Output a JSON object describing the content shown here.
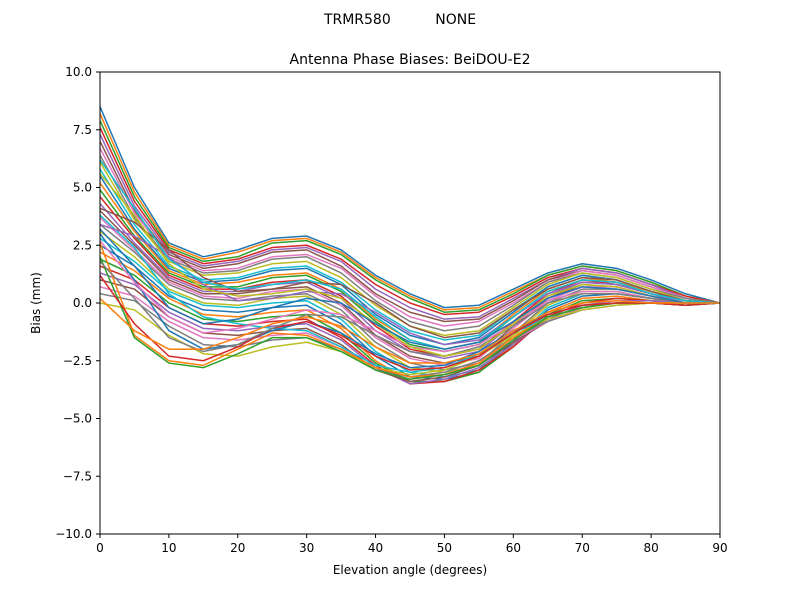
{
  "figure": {
    "suptitle": "TRMR580          NONE"
  },
  "chart_data": {
    "type": "line",
    "title": "Antenna Phase Biases: BeiDOU-E2",
    "xlabel": "Elevation angle (degrees)",
    "ylabel": "Bias (mm)",
    "xlim": [
      0,
      90
    ],
    "ylim": [
      -10,
      10
    ],
    "xticks": [
      0,
      10,
      20,
      30,
      40,
      50,
      60,
      70,
      80,
      90
    ],
    "yticks": [
      -10.0,
      -7.5,
      -5.0,
      -2.5,
      0.0,
      2.5,
      5.0,
      7.5,
      10.0
    ],
    "xtick_labels": [
      "0",
      "10",
      "20",
      "30",
      "40",
      "50",
      "60",
      "70",
      "80",
      "90"
    ],
    "ytick_labels": [
      "−10.0",
      "−7.5",
      "−5.0",
      "−2.5",
      "0.0",
      "2.5",
      "5.0",
      "7.5",
      "10.0"
    ],
    "grid": false,
    "legend": "none",
    "x": [
      0,
      5,
      10,
      15,
      20,
      25,
      30,
      35,
      40,
      45,
      50,
      55,
      60,
      65,
      70,
      75,
      80,
      85,
      90
    ],
    "colors": [
      "#1f77b4",
      "#ff7f0e",
      "#2ca02c",
      "#d62728",
      "#9467bd",
      "#8c564b",
      "#e377c2",
      "#7f7f7f",
      "#bcbd22",
      "#17becf"
    ],
    "series": [
      {
        "values": [
          8.5,
          5.0,
          2.6,
          2.0,
          2.3,
          2.8,
          2.9,
          2.3,
          1.2,
          0.4,
          -0.2,
          -0.1,
          0.6,
          1.3,
          1.7,
          1.5,
          1.0,
          0.4,
          0.0
        ]
      },
      {
        "values": [
          8.2,
          4.8,
          2.5,
          1.9,
          2.2,
          2.7,
          2.8,
          2.2,
          1.1,
          0.3,
          -0.3,
          -0.2,
          0.5,
          1.2,
          1.6,
          1.4,
          0.9,
          0.3,
          0.0
        ]
      },
      {
        "values": [
          7.9,
          4.6,
          2.4,
          1.8,
          2.0,
          2.6,
          2.7,
          2.1,
          1.0,
          0.2,
          -0.4,
          -0.3,
          0.4,
          1.2,
          1.6,
          1.4,
          0.9,
          0.3,
          0.0
        ]
      },
      {
        "values": [
          7.6,
          4.4,
          2.3,
          1.7,
          1.9,
          2.4,
          2.5,
          1.9,
          0.8,
          0.0,
          -0.5,
          -0.4,
          0.3,
          1.1,
          1.5,
          1.3,
          0.8,
          0.3,
          0.0
        ]
      },
      {
        "values": [
          7.3,
          4.2,
          2.2,
          1.6,
          1.8,
          2.3,
          2.4,
          1.8,
          0.6,
          -0.2,
          -0.7,
          -0.6,
          0.2,
          1.0,
          1.5,
          1.3,
          0.8,
          0.2,
          0.0
        ]
      },
      {
        "values": [
          7.0,
          4.0,
          2.1,
          1.5,
          1.7,
          2.2,
          2.3,
          1.6,
          0.4,
          -0.4,
          -0.8,
          -0.7,
          0.1,
          1.0,
          1.4,
          1.2,
          0.7,
          0.2,
          0.0
        ]
      },
      {
        "values": [
          6.7,
          3.9,
          2.0,
          1.4,
          1.5,
          2.0,
          2.1,
          1.5,
          0.3,
          -0.6,
          -1.0,
          -0.8,
          0.0,
          0.9,
          1.4,
          1.2,
          0.7,
          0.2,
          0.0
        ]
      },
      {
        "values": [
          6.4,
          3.7,
          1.9,
          1.3,
          1.4,
          1.9,
          2.0,
          1.3,
          0.1,
          -0.8,
          -1.2,
          -1.0,
          -0.1,
          0.9,
          1.3,
          1.1,
          0.6,
          0.2,
          0.0
        ]
      },
      {
        "values": [
          6.1,
          3.6,
          1.8,
          1.2,
          1.3,
          1.7,
          1.8,
          1.1,
          -0.1,
          -1.0,
          -1.4,
          -1.2,
          -0.2,
          0.8,
          1.3,
          1.1,
          0.6,
          0.1,
          0.0
        ]
      },
      {
        "values": [
          5.8,
          3.4,
          1.6,
          1.0,
          1.1,
          1.5,
          1.6,
          0.9,
          -0.3,
          -1.2,
          -1.6,
          -1.4,
          -0.3,
          0.7,
          1.2,
          1.0,
          0.5,
          0.1,
          0.0
        ]
      },
      {
        "values": [
          5.5,
          3.2,
          1.5,
          0.9,
          1.0,
          1.4,
          1.5,
          0.8,
          -0.5,
          -1.4,
          -1.8,
          -1.5,
          -0.4,
          0.7,
          1.2,
          1.0,
          0.5,
          0.1,
          0.0
        ]
      },
      {
        "values": [
          5.2,
          3.1,
          1.4,
          0.8,
          0.9,
          1.2,
          1.3,
          0.6,
          -0.7,
          -1.6,
          -2.0,
          -1.7,
          -0.5,
          0.6,
          1.1,
          0.9,
          0.5,
          0.1,
          0.0
        ]
      },
      {
        "values": [
          4.9,
          2.9,
          1.3,
          0.7,
          0.7,
          1.1,
          1.2,
          0.5,
          -0.8,
          -1.8,
          -2.1,
          -1.8,
          -0.6,
          0.5,
          1.0,
          0.9,
          0.4,
          0.1,
          0.0
        ]
      },
      {
        "values": [
          4.6,
          2.8,
          1.2,
          0.6,
          0.6,
          0.9,
          1.0,
          0.3,
          -1.0,
          -2.0,
          -2.3,
          -2.0,
          -0.8,
          0.4,
          1.0,
          0.8,
          0.4,
          0.0,
          0.0
        ]
      },
      {
        "values": [
          4.3,
          2.6,
          1.1,
          0.5,
          0.5,
          0.8,
          0.9,
          0.2,
          -1.2,
          -2.1,
          -2.4,
          -2.1,
          -0.9,
          0.3,
          0.9,
          0.8,
          0.4,
          0.0,
          0.0
        ]
      },
      {
        "values": [
          4.0,
          2.5,
          1.0,
          0.4,
          0.4,
          0.6,
          0.7,
          0.0,
          -1.4,
          -2.3,
          -2.6,
          -2.3,
          -1.0,
          0.2,
          0.8,
          0.7,
          0.3,
          0.0,
          0.0
        ]
      },
      {
        "values": [
          3.7,
          2.3,
          0.9,
          0.3,
          0.2,
          0.5,
          0.6,
          -0.1,
          -1.5,
          -2.4,
          -2.7,
          -2.4,
          -1.1,
          0.1,
          0.7,
          0.7,
          0.3,
          0.0,
          0.0
        ]
      },
      {
        "values": [
          3.4,
          2.2,
          0.8,
          0.2,
          0.1,
          0.3,
          0.4,
          -0.3,
          -1.7,
          -2.6,
          -2.9,
          -2.6,
          -1.3,
          0.0,
          0.6,
          0.6,
          0.3,
          0.0,
          0.0
        ]
      },
      {
        "values": [
          3.1,
          2.0,
          0.6,
          0.0,
          -0.1,
          0.2,
          0.3,
          -0.5,
          -1.9,
          -2.8,
          -3.0,
          -2.7,
          -1.4,
          -0.1,
          0.5,
          0.5,
          0.2,
          0.0,
          0.0
        ]
      },
      {
        "values": [
          2.8,
          1.8,
          0.5,
          -0.1,
          -0.2,
          0.0,
          0.1,
          -0.7,
          -2.1,
          -3.0,
          -3.2,
          -2.9,
          -1.6,
          -0.2,
          0.4,
          0.4,
          0.2,
          0.0,
          0.0
        ]
      },
      {
        "values": [
          2.5,
          1.6,
          0.3,
          -0.3,
          -0.4,
          -0.2,
          -0.1,
          -0.9,
          -2.3,
          -3.2,
          -3.3,
          -3.0,
          -1.7,
          -0.3,
          0.3,
          0.4,
          0.2,
          0.0,
          0.0
        ]
      },
      {
        "values": [
          2.2,
          1.4,
          0.2,
          -0.5,
          -0.6,
          -0.4,
          -0.3,
          -1.1,
          -2.5,
          -3.4,
          -3.4,
          -3.0,
          -1.8,
          -0.4,
          0.2,
          0.3,
          0.1,
          0.0,
          0.0
        ]
      },
      {
        "values": [
          1.9,
          1.2,
          0.0,
          -0.7,
          -0.8,
          -0.6,
          -0.5,
          -1.3,
          -2.6,
          -3.4,
          -3.4,
          -3.0,
          -1.9,
          -0.5,
          0.1,
          0.2,
          0.1,
          0.0,
          0.0
        ]
      },
      {
        "values": [
          1.6,
          1.0,
          -0.2,
          -0.9,
          -1.0,
          -0.8,
          -0.7,
          -1.5,
          -2.7,
          -3.5,
          -3.4,
          -2.9,
          -1.9,
          -0.6,
          0.0,
          0.2,
          0.1,
          0.0,
          0.0
        ]
      },
      {
        "values": [
          1.3,
          0.8,
          -0.4,
          -1.1,
          -1.2,
          -1.0,
          -0.9,
          -1.6,
          -2.8,
          -3.5,
          -3.3,
          -2.8,
          -1.8,
          -0.7,
          -0.1,
          0.1,
          0.1,
          0.0,
          0.0
        ]
      },
      {
        "values": [
          1.0,
          0.6,
          -0.6,
          -1.3,
          -1.4,
          -1.2,
          -1.1,
          -1.8,
          -2.9,
          -3.4,
          -3.2,
          -2.7,
          -1.7,
          -0.8,
          -0.2,
          0.0,
          0.0,
          0.0,
          0.0
        ]
      },
      {
        "values": [
          0.7,
          0.3,
          -0.8,
          -1.5,
          -1.6,
          -1.4,
          -1.3,
          -1.9,
          -2.9,
          -3.3,
          -3.1,
          -2.6,
          -1.6,
          -0.8,
          -0.2,
          0.0,
          0.0,
          0.0,
          0.0
        ]
      },
      {
        "values": [
          0.4,
          0.1,
          -1.0,
          -1.8,
          -1.9,
          -1.6,
          -1.5,
          -2.0,
          -2.9,
          -3.2,
          -3.0,
          -2.5,
          -1.5,
          -0.8,
          -0.3,
          -0.1,
          0.0,
          0.0,
          0.0
        ]
      },
      {
        "values": [
          0.0,
          -0.3,
          -1.4,
          -2.2,
          -2.3,
          -1.9,
          -1.7,
          -2.1,
          -2.8,
          -3.1,
          -2.9,
          -2.3,
          -1.4,
          -0.7,
          -0.3,
          -0.1,
          0.0,
          0.0,
          0.0
        ]
      },
      {
        "values": [
          3.8,
          2.4,
          0.4,
          -0.6,
          -0.9,
          -1.1,
          -1.2,
          -1.9,
          -2.7,
          -3.0,
          -2.8,
          -2.2,
          -1.3,
          -0.6,
          -0.2,
          0.0,
          0.0,
          -0.1,
          0.0
        ]
      },
      {
        "values": [
          3.0,
          1.0,
          -1.2,
          -2.0,
          -1.8,
          -1.2,
          -0.8,
          -1.3,
          -2.2,
          -2.8,
          -2.7,
          -2.1,
          -1.2,
          -0.5,
          -0.1,
          0.0,
          0.0,
          -0.1,
          0.0
        ]
      },
      {
        "values": [
          2.6,
          -1.4,
          -2.5,
          -2.7,
          -2.0,
          -1.3,
          -1.4,
          -2.0,
          -2.8,
          -3.2,
          -3.1,
          -2.6,
          -1.5,
          -0.6,
          -0.2,
          0.0,
          0.0,
          -0.1,
          0.0
        ]
      },
      {
        "values": [
          2.0,
          -1.5,
          -2.6,
          -2.8,
          -2.2,
          -1.5,
          -1.5,
          -2.1,
          -2.9,
          -3.3,
          -3.1,
          -2.7,
          -1.6,
          -0.6,
          -0.2,
          0.0,
          0.0,
          -0.1,
          0.0
        ]
      },
      {
        "values": [
          1.2,
          -0.9,
          -2.3,
          -2.5,
          -1.9,
          -1.1,
          -0.8,
          -1.4,
          -2.3,
          -2.9,
          -2.8,
          -2.3,
          -1.3,
          -0.5,
          -0.1,
          0.0,
          0.0,
          -0.1,
          0.0
        ]
      },
      {
        "values": [
          3.4,
          2.9,
          2.0,
          0.8,
          0.1,
          0.2,
          0.5,
          0.4,
          -0.4,
          -1.3,
          -1.8,
          -1.6,
          -0.6,
          0.4,
          0.9,
          0.8,
          0.4,
          0.0,
          0.0
        ]
      },
      {
        "values": [
          4.1,
          3.5,
          2.3,
          1.1,
          0.5,
          0.6,
          0.9,
          0.8,
          0.0,
          -1.0,
          -1.5,
          -1.3,
          -0.3,
          0.6,
          1.1,
          1.0,
          0.5,
          0.1,
          0.0
        ]
      },
      {
        "values": [
          2.7,
          0.9,
          -0.6,
          -1.3,
          -1.1,
          -0.7,
          -0.3,
          -0.5,
          -1.2,
          -1.9,
          -2.1,
          -1.8,
          -0.9,
          0.1,
          0.5,
          0.5,
          0.2,
          0.0,
          0.0
        ]
      },
      {
        "values": [
          1.8,
          0.2,
          -1.5,
          -2.1,
          -1.8,
          -1.1,
          -0.5,
          -0.6,
          -1.4,
          -2.1,
          -2.3,
          -1.9,
          -1.0,
          0.0,
          0.4,
          0.4,
          0.2,
          0.0,
          0.0
        ]
      },
      {
        "values": [
          5.6,
          3.8,
          1.7,
          0.6,
          0.3,
          0.4,
          0.6,
          0.2,
          -0.9,
          -1.9,
          -2.3,
          -2.0,
          -0.9,
          0.3,
          0.8,
          0.7,
          0.3,
          0.0,
          0.0
        ]
      },
      {
        "values": [
          6.2,
          4.1,
          1.9,
          0.9,
          0.6,
          0.8,
          1.0,
          0.6,
          -0.6,
          -1.6,
          -2.0,
          -1.7,
          -0.6,
          0.5,
          1.0,
          0.9,
          0.4,
          0.1,
          0.0
        ]
      },
      {
        "values": [
          3.2,
          1.6,
          -0.2,
          -0.9,
          -0.7,
          -0.2,
          0.2,
          0.0,
          -0.9,
          -1.7,
          -2.0,
          -1.7,
          -0.8,
          0.2,
          0.7,
          0.6,
          0.3,
          0.0,
          0.0
        ]
      },
      {
        "values": [
          0.2,
          -1.2,
          -2.0,
          -2.0,
          -1.5,
          -0.9,
          -0.6,
          -1.0,
          -1.9,
          -2.6,
          -2.6,
          -2.2,
          -1.2,
          -0.4,
          0.0,
          0.1,
          0.0,
          0.0,
          0.0
        ]
      }
    ]
  }
}
